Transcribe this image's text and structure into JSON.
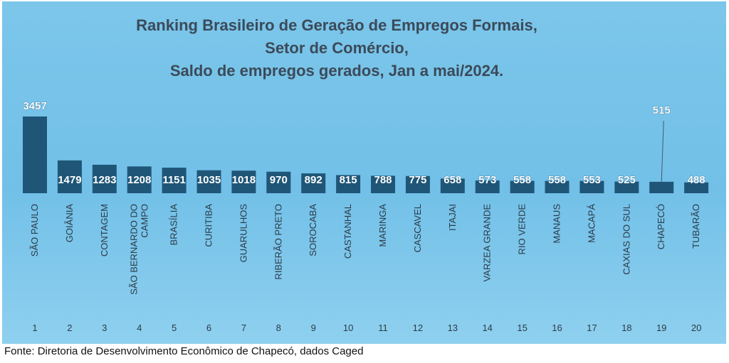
{
  "chart_data": {
    "type": "bar",
    "title_lines": [
      "Ranking Brasileiro de Geração de Empregos Formais,",
      "Setor de Comércio,",
      "Saldo de empregos gerados, Jan a mai/2024."
    ],
    "categories": [
      "SÃO PAULO",
      "GOIÂNIA",
      "CONTAGEM",
      "SÃO BERNARDO DO CAMPO",
      "BRASÍLIA",
      "CURITIBA",
      "GUARULHOS",
      "RIBERÃO PRETO",
      "SOROCABA",
      "CASTANHAL",
      "MARINGA",
      "CASCAVEL",
      "ITAJAI",
      "VARZEA GRANDE",
      "RIO VERDE",
      "MANAUS",
      "MACAPÁ",
      "CAXIAS DO SUL",
      "CHAPECÓ",
      "TUBARÃO"
    ],
    "category_label_lines": [
      [
        "SÃO PAULO"
      ],
      [
        "GOIÂNIA"
      ],
      [
        "CONTAGEM"
      ],
      [
        "SÃO BERNARDO DO",
        "CAMPO"
      ],
      [
        "BRASÍLIA"
      ],
      [
        "CURITIBA"
      ],
      [
        "GUARULHOS"
      ],
      [
        "RIBERÃO PRETO"
      ],
      [
        "SOROCABA"
      ],
      [
        "CASTANHAL"
      ],
      [
        "MARINGA"
      ],
      [
        "CASCAVEL"
      ],
      [
        "ITAJAI"
      ],
      [
        "VARZEA GRANDE"
      ],
      [
        "RIO VERDE"
      ],
      [
        "MANAUS"
      ],
      [
        "MACAPÁ"
      ],
      [
        "CAXIAS DO SUL"
      ],
      [
        "CHAPECÓ"
      ],
      [
        "TUBARÃO"
      ]
    ],
    "values": [
      3457,
      1479,
      1283,
      1208,
      1151,
      1035,
      1018,
      970,
      892,
      815,
      788,
      775,
      658,
      573,
      558,
      558,
      553,
      525,
      515,
      488
    ],
    "value_labels": [
      "3457",
      "1479",
      "1283",
      "1208",
      "1151",
      "1035",
      "1018",
      "970",
      "892",
      "815",
      "788",
      "775",
      "658",
      "573",
      "558",
      "558",
      "553",
      "525",
      "515",
      "488"
    ],
    "ranks": [
      "1",
      "2",
      "3",
      "4",
      "5",
      "6",
      "7",
      "8",
      "9",
      "10",
      "11",
      "12",
      "13",
      "14",
      "15",
      "16",
      "17",
      "18",
      "19",
      "20"
    ],
    "callout_index": 18,
    "ylim": [
      0,
      3457
    ],
    "bar_color": "#1f5677",
    "title_color": "#3b4a59",
    "background_color": "#78c3e9",
    "grid": false,
    "legend": false
  },
  "source_note": "Fonte: Diretoria de Desenvolvimento Econômico de Chapecó, dados Caged"
}
